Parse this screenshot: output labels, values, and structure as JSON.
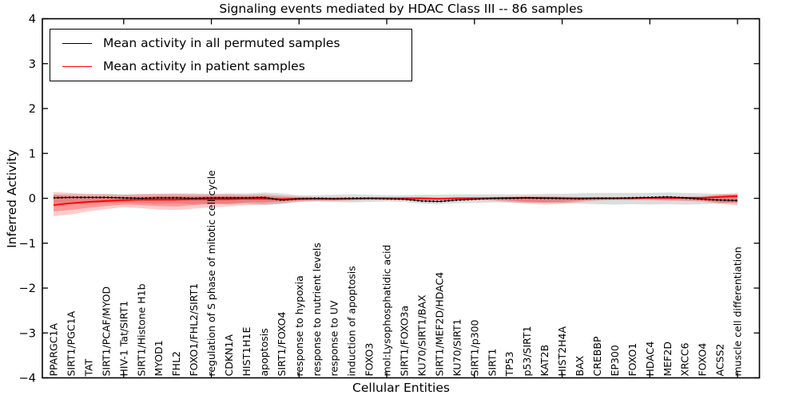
{
  "chart_data": {
    "type": "line",
    "title": "Signaling events mediated by HDAC Class III -- 86 samples",
    "xlabel": "Cellular Entities",
    "ylabel": "Inferred Activity",
    "ylim": [
      -4,
      4
    ],
    "grid": false,
    "legend_position": "upper left",
    "ytick_values": [
      4,
      3,
      2,
      1,
      0,
      -1,
      -2,
      -3,
      -4
    ],
    "ytick_labels": [
      "4",
      "3",
      "2",
      "1",
      "0",
      "−1",
      "−2",
      "−3",
      "−4"
    ],
    "xtick_major_indices": [
      4,
      9,
      14,
      19,
      24,
      29,
      34,
      39
    ],
    "categories": [
      "PPARGC1A",
      "SIRT1/PGC1A",
      "TAT",
      "SIRT1/PCAF/MYOD",
      "HIV-1 Tat/SIRT1",
      "SIRT1/Histone H1b",
      "MYOD1",
      "FHL2",
      "FOXO1/FHL2/SIRT1",
      "regulation of S phase of mitotic cell cycle",
      "CDKN1A",
      "HIST1H1E",
      "apoptosis",
      "SIRT1/FOXO4",
      "response to hypoxia",
      "response to nutrient levels",
      "response to UV",
      "induction of apoptosis",
      "FOXO3",
      "mol:Lysophosphatidic acid",
      "SIRT1/FOXO3a",
      "KU70/SIRT1/BAX",
      "SIRT1/MEF2D/HDAC4",
      "KU70/SIRT1",
      "SIRT1/p300",
      "SIRT1",
      "TP53",
      "p53/SIRT1",
      "KAT2B",
      "HIST2H4A",
      "BAX",
      "CREBBP",
      "EP300",
      "FOXO1",
      "HDAC4",
      "MEF2D",
      "XRCC6",
      "FOXO4",
      "ACSS2",
      "muscle cell differentiation"
    ],
    "series": [
      {
        "name": "Mean activity in all permuted samples",
        "color": "#000000",
        "band_color": "#808080",
        "mean": [
          0.01,
          0.02,
          0.02,
          0.02,
          0.01,
          0.0,
          0.01,
          0.01,
          0.0,
          0.01,
          0.01,
          0.01,
          0.02,
          -0.04,
          -0.01,
          0.0,
          -0.01,
          0.0,
          0.0,
          -0.01,
          -0.02,
          -0.06,
          -0.07,
          -0.04,
          -0.02,
          0.0,
          0.0,
          0.01,
          0.0,
          0.0,
          -0.01,
          0.0,
          0.0,
          0.01,
          0.02,
          0.03,
          0.01,
          -0.02,
          -0.04,
          -0.05
        ],
        "band_upper": [
          0.09,
          0.09,
          0.09,
          0.1,
          0.09,
          0.1,
          0.1,
          0.11,
          0.11,
          0.1,
          0.11,
          0.11,
          0.13,
          0.11,
          0.07,
          0.07,
          0.08,
          0.09,
          0.08,
          0.07,
          0.07,
          0.08,
          0.08,
          0.09,
          0.09,
          0.09,
          0.09,
          0.09,
          0.1,
          0.1,
          0.11,
          0.12,
          0.12,
          0.12,
          0.12,
          0.13,
          0.12,
          0.11,
          0.1,
          0.08
        ],
        "band_lower": [
          -0.11,
          -0.11,
          -0.1,
          -0.11,
          -0.1,
          -0.11,
          -0.12,
          -0.11,
          -0.13,
          -0.11,
          -0.14,
          -0.12,
          -0.15,
          -0.13,
          -0.08,
          -0.07,
          -0.08,
          -0.09,
          -0.08,
          -0.07,
          -0.08,
          -0.12,
          -0.13,
          -0.11,
          -0.1,
          -0.09,
          -0.1,
          -0.1,
          -0.1,
          -0.11,
          -0.12,
          -0.13,
          -0.14,
          -0.13,
          -0.14,
          -0.13,
          -0.14,
          -0.13,
          -0.12,
          -0.08
        ]
      },
      {
        "name": "Mean activity in patient samples",
        "color": "#ff0000",
        "band_color": "#ff0000",
        "mean": [
          -0.15,
          -0.11,
          -0.08,
          -0.06,
          -0.04,
          -0.03,
          -0.03,
          -0.03,
          -0.02,
          -0.02,
          -0.02,
          -0.01,
          -0.01,
          -0.02,
          -0.01,
          -0.01,
          -0.01,
          -0.01,
          0.0,
          0.0,
          0.0,
          0.0,
          -0.01,
          0.0,
          0.0,
          0.0,
          0.01,
          0.01,
          0.01,
          0.0,
          0.0,
          0.0,
          0.0,
          0.0,
          0.01,
          0.01,
          0.01,
          0.01,
          0.03,
          0.05
        ],
        "band_upper": [
          0.14,
          0.12,
          0.1,
          0.09,
          0.08,
          0.09,
          0.1,
          0.1,
          0.09,
          0.09,
          0.09,
          0.08,
          0.09,
          0.06,
          0.04,
          0.03,
          0.03,
          0.03,
          0.02,
          0.02,
          0.02,
          0.02,
          0.02,
          0.02,
          0.03,
          0.03,
          0.04,
          0.05,
          0.05,
          0.04,
          0.03,
          0.03,
          0.03,
          0.03,
          0.03,
          0.04,
          0.04,
          0.05,
          0.09,
          0.12
        ],
        "band_lower": [
          -0.4,
          -0.36,
          -0.29,
          -0.24,
          -0.2,
          -0.22,
          -0.25,
          -0.26,
          -0.23,
          -0.2,
          -0.18,
          -0.15,
          -0.14,
          -0.11,
          -0.07,
          -0.06,
          -0.06,
          -0.05,
          -0.04,
          -0.04,
          -0.04,
          -0.05,
          -0.05,
          -0.04,
          -0.04,
          -0.05,
          -0.08,
          -0.12,
          -0.14,
          -0.12,
          -0.08,
          -0.05,
          -0.04,
          -0.04,
          -0.04,
          -0.05,
          -0.06,
          -0.07,
          -0.12,
          -0.16
        ],
        "band_inner_upper": [
          0.07,
          0.05,
          0.04,
          0.03,
          0.03,
          0.04,
          0.05,
          0.05,
          0.05,
          0.05,
          0.05,
          0.04,
          0.05,
          0.03,
          0.02,
          0.01,
          0.01,
          0.01,
          0.01,
          0.01,
          0.01,
          0.01,
          0.01,
          0.01,
          0.02,
          0.02,
          0.03,
          0.03,
          0.03,
          0.02,
          0.02,
          0.02,
          0.02,
          0.02,
          0.02,
          0.03,
          0.03,
          0.03,
          0.06,
          0.09
        ],
        "band_inner_lower": [
          -0.29,
          -0.26,
          -0.21,
          -0.17,
          -0.14,
          -0.15,
          -0.17,
          -0.18,
          -0.15,
          -0.13,
          -0.12,
          -0.09,
          -0.09,
          -0.07,
          -0.05,
          -0.04,
          -0.04,
          -0.03,
          -0.02,
          -0.02,
          -0.02,
          -0.03,
          -0.03,
          -0.02,
          -0.02,
          -0.03,
          -0.05,
          -0.08,
          -0.09,
          -0.08,
          -0.05,
          -0.03,
          -0.02,
          -0.02,
          -0.02,
          -0.03,
          -0.04,
          -0.05,
          -0.09,
          -0.11
        ]
      }
    ]
  }
}
